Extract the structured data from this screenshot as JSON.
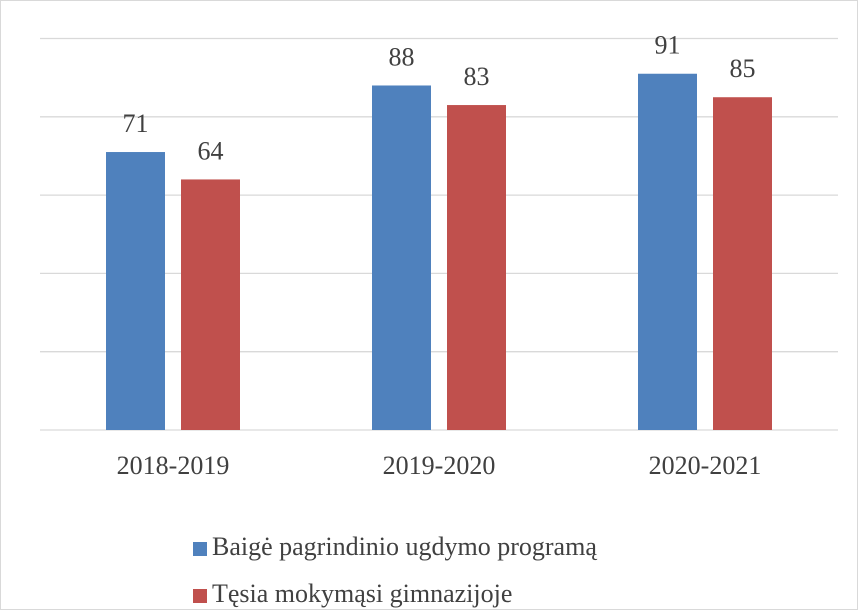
{
  "chart_data": {
    "type": "bar",
    "categories": [
      "2018-2019",
      "2019-2020",
      "2020-2021"
    ],
    "series": [
      {
        "name": "Baigė pagrindinio ugdymo programą",
        "color": "#4f81bd",
        "values": [
          71,
          88,
          91
        ]
      },
      {
        "name": "Tęsia mokymąsi gimnazijoje",
        "color": "#c0504d",
        "values": [
          64,
          83,
          85
        ]
      }
    ],
    "ylim": [
      0,
      100
    ],
    "yticks": [
      0,
      20,
      40,
      60,
      80,
      100
    ],
    "grid": true,
    "legend": "bottom"
  }
}
